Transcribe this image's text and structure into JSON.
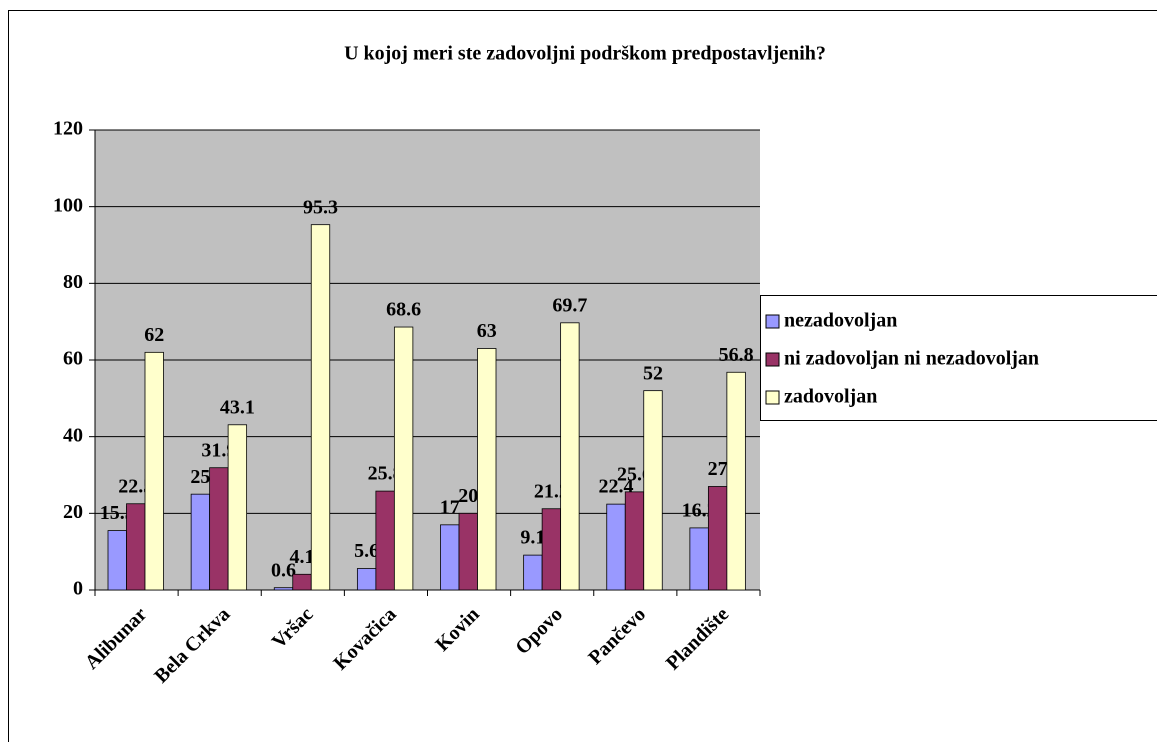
{
  "chart_data": {
    "type": "bar",
    "title": "U kojoj meri ste zadovoljni podrškom predpostavljenih?",
    "categories": [
      "Alibunar",
      "Bela Crkva",
      "Vršac",
      "Kovačica",
      "Kovin",
      "Opovo",
      "Pančevo",
      "Plandište"
    ],
    "series": [
      {
        "name": "nezadovoljan",
        "color": "#9999ff",
        "values": [
          15.5,
          25,
          0.6,
          5.6,
          17,
          9.1,
          22.4,
          16.2
        ]
      },
      {
        "name": "ni zadovoljan ni nezadovoljan",
        "color": "#993366",
        "values": [
          22.5,
          31.9,
          4.1,
          25.8,
          20,
          21.2,
          25.6,
          27
        ]
      },
      {
        "name": "zadovoljan",
        "color": "#ffffcc",
        "values": [
          62,
          43.1,
          95.3,
          68.6,
          63,
          69.7,
          52,
          56.8
        ]
      }
    ],
    "ylim": [
      0,
      120
    ],
    "yticks": [
      0,
      20,
      40,
      60,
      80,
      100,
      120
    ],
    "grid": true,
    "legend": "right"
  }
}
